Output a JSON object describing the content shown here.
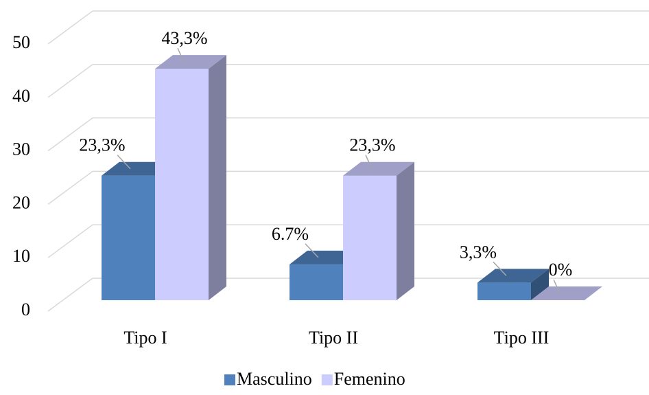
{
  "chart_data": {
    "type": "bar3d",
    "categories": [
      "Tipo I",
      "Tipo II",
      "Tipo III"
    ],
    "series": [
      {
        "name": "Masculino",
        "color": "#4f81bd",
        "values": [
          23.3,
          6.7,
          3.3
        ],
        "value_labels": [
          "23,3%",
          "6.7%",
          "3,3%"
        ]
      },
      {
        "name": "Femenino",
        "color": "#ccccff",
        "values": [
          43.3,
          23.3,
          0
        ],
        "value_labels": [
          "43,3%",
          "23,3%",
          "0%"
        ]
      }
    ],
    "ylim": [
      0,
      50
    ],
    "yticks": [
      0,
      10,
      20,
      30,
      40,
      50
    ],
    "grid": true,
    "legend": "bottom"
  }
}
